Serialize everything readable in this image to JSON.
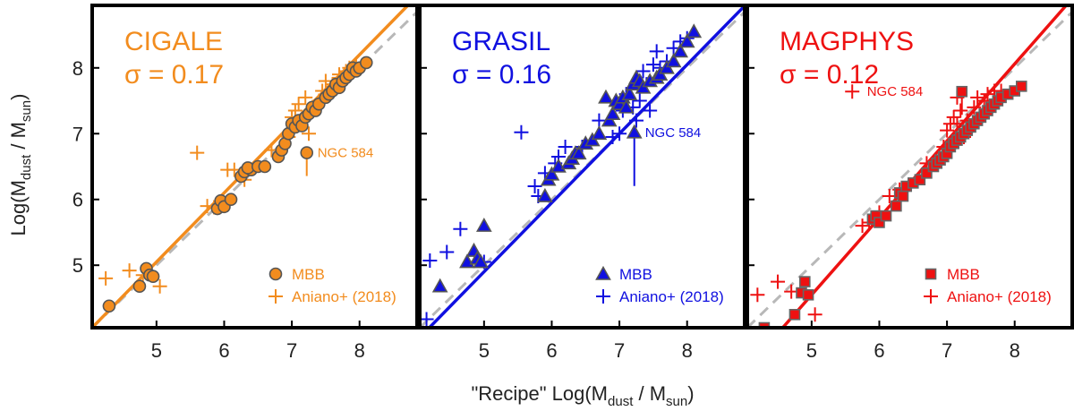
{
  "chart_data": {
    "type": "scatter",
    "xlabel_prefix": "\"Recipe\" Log(M",
    "ylabel_prefix": "Log(M",
    "label_sub_dust": "dust",
    "label_mid": " / M",
    "label_sub_sun": "sun",
    "label_close": ")",
    "xlim": [
      4.05,
      8.85
    ],
    "ylim": [
      4.05,
      8.95
    ],
    "xticks": [
      5,
      6,
      7,
      8
    ],
    "yticks": [
      5,
      6,
      7,
      8
    ],
    "panels": [
      {
        "title": "CIGALE",
        "sigma_text": "σ = 0.17",
        "color": "#f28c1e",
        "marker": "circle",
        "fit": {
          "slope": 1.05,
          "intercept": -0.2
        },
        "annotation": {
          "text": "NGC 584",
          "x": 7.22,
          "y": 6.71
        },
        "legend": [
          "MBB",
          "Aniano+ (2018)"
        ],
        "mbb_points": [
          [
            4.3,
            4.38
          ],
          [
            4.75,
            4.68
          ],
          [
            4.85,
            4.95
          ],
          [
            4.9,
            4.85
          ],
          [
            4.95,
            4.83
          ],
          [
            5.9,
            5.86
          ],
          [
            5.95,
            5.98
          ],
          [
            6.0,
            5.89
          ],
          [
            6.1,
            6.0
          ],
          [
            6.25,
            6.35
          ],
          [
            6.3,
            6.42
          ],
          [
            6.4,
            6.45
          ],
          [
            6.35,
            6.48
          ],
          [
            6.5,
            6.5
          ],
          [
            6.6,
            6.5
          ],
          [
            6.8,
            6.65
          ],
          [
            6.85,
            6.75
          ],
          [
            6.9,
            6.85
          ],
          [
            6.95,
            7.0
          ],
          [
            7.0,
            7.15
          ],
          [
            7.05,
            7.1
          ],
          [
            7.1,
            7.2
          ],
          [
            7.15,
            7.12
          ],
          [
            7.2,
            7.25
          ],
          [
            7.25,
            7.3
          ],
          [
            7.3,
            7.4
          ],
          [
            7.35,
            7.35
          ],
          [
            7.4,
            7.45
          ],
          [
            7.5,
            7.55
          ],
          [
            7.55,
            7.6
          ],
          [
            7.6,
            7.65
          ],
          [
            7.65,
            7.75
          ],
          [
            7.7,
            7.7
          ],
          [
            7.75,
            7.8
          ],
          [
            7.8,
            7.85
          ],
          [
            7.85,
            7.9
          ],
          [
            7.9,
            8.0
          ],
          [
            7.95,
            7.95
          ],
          [
            8.0,
            8.0
          ],
          [
            8.1,
            8.08
          ],
          [
            7.22,
            6.71
          ]
        ],
        "aniano_points": [
          [
            4.25,
            4.8
          ],
          [
            4.6,
            4.92
          ],
          [
            4.8,
            4.85
          ],
          [
            5.05,
            4.68
          ],
          [
            5.6,
            6.71
          ],
          [
            5.75,
            5.9
          ],
          [
            5.85,
            5.88
          ],
          [
            6.05,
            6.45
          ],
          [
            6.15,
            6.45
          ],
          [
            6.3,
            6.3
          ],
          [
            6.7,
            6.75
          ],
          [
            6.95,
            6.95
          ],
          [
            7.0,
            7.25
          ],
          [
            7.05,
            7.35
          ],
          [
            7.1,
            7.45
          ],
          [
            7.15,
            7.2
          ],
          [
            7.25,
            7.0
          ],
          [
            7.3,
            7.35
          ],
          [
            7.4,
            7.5
          ],
          [
            7.45,
            7.65
          ],
          [
            7.55,
            7.6
          ],
          [
            7.6,
            7.75
          ],
          [
            7.7,
            7.85
          ],
          [
            7.8,
            7.95
          ],
          [
            7.85,
            8.0
          ],
          [
            7.95,
            8.05
          ],
          [
            7.5,
            7.8
          ],
          [
            7.7,
            7.9
          ],
          [
            7.2,
            7.55
          ]
        ]
      },
      {
        "title": "GRASIL",
        "sigma_text": "σ = 0.16",
        "color": "#1010e0",
        "marker": "triangle",
        "fit": {
          "slope": 1.05,
          "intercept": -0.35
        },
        "annotation": {
          "text": "NGC 584",
          "x": 7.22,
          "y": 7.02
        },
        "legend": [
          "MBB",
          "Aniano+ (2018)"
        ],
        "mbb_points": [
          [
            4.35,
            4.68
          ],
          [
            4.75,
            5.05
          ],
          [
            4.85,
            5.22
          ],
          [
            4.9,
            5.1
          ],
          [
            4.95,
            5.05
          ],
          [
            5.0,
            5.6
          ],
          [
            5.9,
            6.05
          ],
          [
            5.95,
            6.3
          ],
          [
            6.0,
            6.38
          ],
          [
            6.1,
            6.5
          ],
          [
            6.25,
            6.55
          ],
          [
            6.3,
            6.62
          ],
          [
            6.35,
            6.7
          ],
          [
            6.4,
            6.7
          ],
          [
            6.5,
            6.85
          ],
          [
            6.6,
            6.9
          ],
          [
            6.7,
            7.0
          ],
          [
            6.8,
            7.55
          ],
          [
            6.85,
            7.2
          ],
          [
            6.9,
            7.3
          ],
          [
            6.95,
            7.5
          ],
          [
            7.0,
            7.45
          ],
          [
            7.05,
            7.55
          ],
          [
            7.1,
            7.4
          ],
          [
            7.15,
            7.6
          ],
          [
            7.2,
            7.75
          ],
          [
            7.25,
            7.85
          ],
          [
            7.3,
            7.8
          ],
          [
            7.35,
            7.7
          ],
          [
            7.45,
            7.8
          ],
          [
            7.55,
            7.85
          ],
          [
            7.6,
            7.9
          ],
          [
            7.7,
            8.0
          ],
          [
            7.8,
            8.1
          ],
          [
            7.9,
            8.25
          ],
          [
            8.0,
            8.4
          ],
          [
            8.1,
            8.55
          ],
          [
            7.22,
            7.02
          ]
        ],
        "aniano_points": [
          [
            4.15,
            4.18
          ],
          [
            4.2,
            5.07
          ],
          [
            4.45,
            5.2
          ],
          [
            4.65,
            5.55
          ],
          [
            5.0,
            5.05
          ],
          [
            5.55,
            7.02
          ],
          [
            5.75,
            6.2
          ],
          [
            5.8,
            6.05
          ],
          [
            5.9,
            6.4
          ],
          [
            6.05,
            6.55
          ],
          [
            6.1,
            6.65
          ],
          [
            6.2,
            6.8
          ],
          [
            6.45,
            6.8
          ],
          [
            6.7,
            7.2
          ],
          [
            6.9,
            6.95
          ],
          [
            7.0,
            7.0
          ],
          [
            7.05,
            7.35
          ],
          [
            7.1,
            7.6
          ],
          [
            7.2,
            7.4
          ],
          [
            7.3,
            7.5
          ],
          [
            7.35,
            7.95
          ],
          [
            7.4,
            7.75
          ],
          [
            7.5,
            8.05
          ],
          [
            7.55,
            8.25
          ],
          [
            7.6,
            8.0
          ],
          [
            7.7,
            8.1
          ],
          [
            7.8,
            8.3
          ],
          [
            7.9,
            8.4
          ],
          [
            8.0,
            8.45
          ],
          [
            7.25,
            7.2
          ],
          [
            7.45,
            7.35
          ]
        ]
      },
      {
        "title": "MAGPHYS",
        "sigma_text": "σ = 0.12",
        "color": "#ee1111",
        "marker": "square",
        "fit": {
          "slope": 1.17,
          "intercept": -1.3
        },
        "annotation": {
          "text": "NGC 584",
          "x": 7.22,
          "y": 7.64
        },
        "legend": [
          "MBB",
          "Aniano+ (2018)"
        ],
        "mbb_points": [
          [
            4.3,
            4.05
          ],
          [
            4.75,
            4.25
          ],
          [
            4.85,
            4.58
          ],
          [
            4.9,
            4.75
          ],
          [
            4.95,
            4.55
          ],
          [
            5.9,
            5.7
          ],
          [
            5.95,
            5.75
          ],
          [
            6.0,
            5.65
          ],
          [
            6.1,
            5.75
          ],
          [
            6.25,
            5.9
          ],
          [
            6.3,
            6.1
          ],
          [
            6.35,
            6.05
          ],
          [
            6.4,
            6.2
          ],
          [
            6.5,
            6.25
          ],
          [
            6.6,
            6.3
          ],
          [
            6.7,
            6.4
          ],
          [
            6.8,
            6.5
          ],
          [
            6.85,
            6.55
          ],
          [
            6.9,
            6.6
          ],
          [
            6.95,
            6.65
          ],
          [
            7.0,
            6.7
          ],
          [
            7.05,
            6.8
          ],
          [
            7.1,
            6.85
          ],
          [
            7.15,
            6.9
          ],
          [
            7.2,
            6.95
          ],
          [
            7.25,
            7.0
          ],
          [
            7.3,
            7.05
          ],
          [
            7.35,
            7.1
          ],
          [
            7.4,
            7.15
          ],
          [
            7.45,
            7.2
          ],
          [
            7.5,
            7.25
          ],
          [
            7.55,
            7.3
          ],
          [
            7.6,
            7.35
          ],
          [
            7.65,
            7.4
          ],
          [
            7.7,
            7.45
          ],
          [
            7.75,
            7.5
          ],
          [
            7.8,
            7.55
          ],
          [
            7.9,
            7.6
          ],
          [
            8.0,
            7.65
          ],
          [
            8.1,
            7.72
          ],
          [
            7.22,
            7.64
          ]
        ],
        "aniano_points": [
          [
            4.2,
            4.55
          ],
          [
            4.5,
            4.75
          ],
          [
            4.7,
            4.6
          ],
          [
            5.05,
            4.25
          ],
          [
            5.6,
            7.64
          ],
          [
            5.75,
            5.6
          ],
          [
            5.85,
            5.65
          ],
          [
            6.0,
            5.8
          ],
          [
            6.15,
            6.05
          ],
          [
            6.3,
            6.15
          ],
          [
            6.7,
            6.55
          ],
          [
            6.95,
            6.8
          ],
          [
            7.0,
            7.05
          ],
          [
            7.05,
            7.15
          ],
          [
            7.1,
            7.25
          ],
          [
            7.15,
            7.15
          ],
          [
            7.2,
            7.35
          ],
          [
            7.3,
            7.2
          ],
          [
            7.4,
            7.4
          ],
          [
            7.45,
            7.55
          ],
          [
            7.55,
            7.5
          ],
          [
            7.6,
            7.6
          ],
          [
            7.7,
            7.65
          ],
          [
            7.8,
            7.65
          ],
          [
            7.15,
            7.55
          ],
          [
            7.25,
            6.95
          ]
        ]
      }
    ]
  }
}
